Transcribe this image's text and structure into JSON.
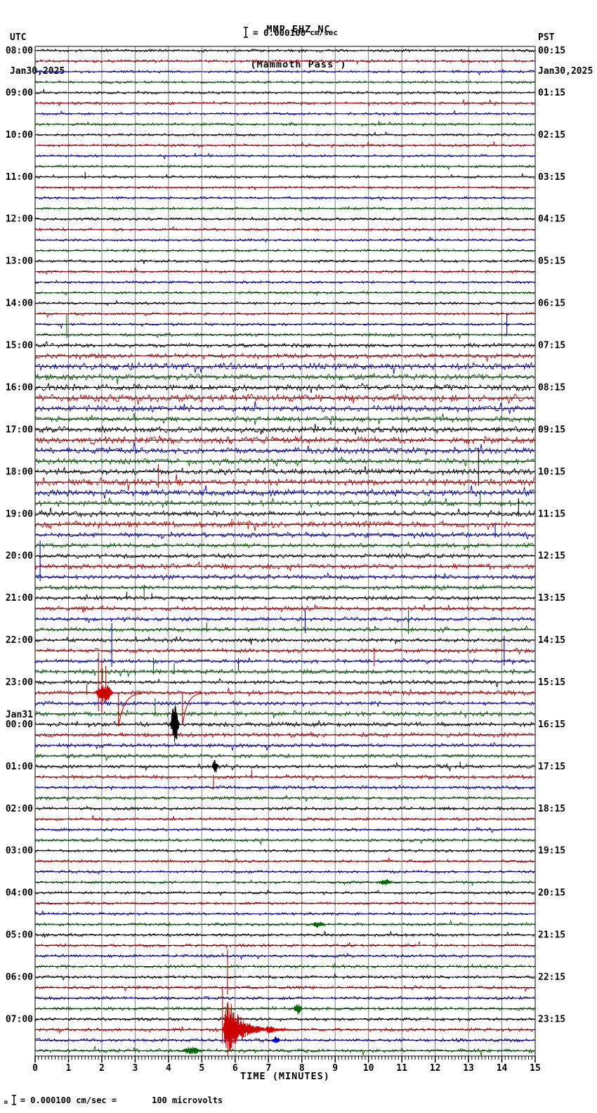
{
  "header": {
    "station_id": "MMP EHZ NC",
    "station_name": "(Mammoth Pass )",
    "scale_label": "= 0.000100",
    "scale_units": "cm/sec",
    "left_tz": "UTC",
    "left_date": "Jan30,2025",
    "right_tz": "PST",
    "right_date": "Jan30,2025"
  },
  "footer": {
    "axis_label": "TIME (MINUTES)",
    "footnote_prefix": "m",
    "footnote_scale": "= 0.000100 cm/sec =",
    "footnote_value": "100 microvolts"
  },
  "chart_data": {
    "type": "seismogram-helicorder",
    "title": "MMP EHZ NC (Mammoth Pass )",
    "xlabel": "TIME (MINUTES)",
    "x_ticks": [
      0,
      1,
      2,
      3,
      4,
      5,
      6,
      7,
      8,
      9,
      10,
      11,
      12,
      13,
      14,
      15
    ],
    "x_minor_per_major": 10,
    "minutes_per_row": 15,
    "rows_per_hour": 4,
    "grid": true,
    "grid_color": "#808080",
    "trace_colors": [
      "#000000",
      "#cc0000",
      "#0000cc",
      "#006400"
    ],
    "midnight_label": "Jan31",
    "hour_rows": [
      {
        "utc": "08:00",
        "pst": "00:15"
      },
      {
        "utc": "09:00",
        "pst": "01:15"
      },
      {
        "utc": "10:00",
        "pst": "02:15"
      },
      {
        "utc": "11:00",
        "pst": "03:15"
      },
      {
        "utc": "12:00",
        "pst": "04:15"
      },
      {
        "utc": "13:00",
        "pst": "05:15"
      },
      {
        "utc": "14:00",
        "pst": "06:15"
      },
      {
        "utc": "15:00",
        "pst": "07:15"
      },
      {
        "utc": "16:00",
        "pst": "08:15"
      },
      {
        "utc": "17:00",
        "pst": "09:15"
      },
      {
        "utc": "18:00",
        "pst": "10:15"
      },
      {
        "utc": "19:00",
        "pst": "11:15"
      },
      {
        "utc": "20:00",
        "pst": "12:15"
      },
      {
        "utc": "21:00",
        "pst": "13:15"
      },
      {
        "utc": "22:00",
        "pst": "14:15"
      },
      {
        "utc": "23:00",
        "pst": "15:15"
      },
      {
        "utc": "00:00",
        "pst": "16:15"
      },
      {
        "utc": "01:00",
        "pst": "17:15"
      },
      {
        "utc": "02:00",
        "pst": "18:15"
      },
      {
        "utc": "03:00",
        "pst": "19:15"
      },
      {
        "utc": "04:00",
        "pst": "20:15"
      },
      {
        "utc": "05:00",
        "pst": "21:15"
      },
      {
        "utc": "06:00",
        "pst": "22:15"
      },
      {
        "utc": "07:00",
        "pst": "23:15"
      }
    ],
    "noise_amplitudes": [
      1.2,
      1.2,
      1.1,
      1.1,
      1.1,
      1.2,
      1.1,
      1.1,
      1.1,
      1.2,
      1.1,
      1.1,
      1.2,
      1.1,
      1.1,
      1.1,
      1.2,
      1.2,
      1.1,
      1.1,
      1.2,
      1.2,
      1.1,
      1.1,
      1.2,
      1.2,
      1.2,
      1.3,
      1.8,
      2.0,
      2.8,
      2.6,
      2.6,
      3.2,
      2.6,
      2.3,
      2.6,
      3.0,
      2.6,
      2.3,
      2.6,
      2.8,
      2.8,
      2.3,
      2.4,
      2.6,
      2.2,
      1.9,
      1.9,
      2.2,
      1.9,
      1.9,
      1.7,
      1.9,
      1.7,
      1.7,
      1.7,
      1.9,
      1.7,
      1.9,
      1.7,
      1.9,
      1.7,
      1.9,
      1.9,
      1.9,
      1.7,
      1.6,
      1.6,
      1.6,
      1.4,
      1.4,
      1.4,
      1.3,
      1.3,
      1.3,
      1.2,
      1.2,
      1.2,
      1.2,
      1.2,
      1.2,
      1.2,
      1.3,
      1.3,
      1.3,
      1.3,
      1.4,
      1.3,
      1.4,
      1.4,
      1.5,
      1.4,
      1.5,
      1.5,
      1.6
    ],
    "events": [
      {
        "row": 12,
        "kind": "spike",
        "t": 1.5,
        "up": 7,
        "down": 3
      },
      {
        "row": 26,
        "kind": "spike",
        "t": 14.15,
        "up": 16,
        "down": 16
      },
      {
        "row": 27,
        "kind": "spike",
        "t": 0.95,
        "up": 30,
        "down": 5
      },
      {
        "row": 40,
        "kind": "spike",
        "t": 13.3,
        "up": 34,
        "down": 20
      },
      {
        "row": 41,
        "kind": "spike",
        "t": 3.7,
        "up": 26,
        "down": 8
      },
      {
        "row": 43,
        "kind": "spike",
        "t": 13.35,
        "up": 18,
        "down": 5
      },
      {
        "row": 44,
        "kind": "spike",
        "t": 14.5,
        "up": 22,
        "down": 4
      },
      {
        "row": 45,
        "kind": "spike",
        "t": 5.9,
        "up": 8,
        "down": 4
      },
      {
        "row": 46,
        "kind": "spike",
        "t": 13.8,
        "up": 16,
        "down": 4
      },
      {
        "row": 50,
        "kind": "spike",
        "t": 0.15,
        "up": 52,
        "down": 6
      },
      {
        "row": 51,
        "kind": "spike",
        "t": 3.27,
        "up": 4,
        "down": 16
      },
      {
        "row": 52,
        "kind": "spike",
        "t": 2.75,
        "up": 9,
        "down": 2
      },
      {
        "row": 52,
        "kind": "spike",
        "t": 3.5,
        "up": 7,
        "down": 2
      },
      {
        "row": 54,
        "kind": "spike",
        "t": 8.1,
        "up": 12,
        "down": 20
      },
      {
        "row": 55,
        "kind": "spike",
        "t": 5.15,
        "up": 10,
        "down": 3
      },
      {
        "row": 55,
        "kind": "spike",
        "t": 11.2,
        "up": 28,
        "down": 6
      },
      {
        "row": 57,
        "kind": "spike",
        "t": 10.17,
        "up": 4,
        "down": 22
      },
      {
        "row": 58,
        "kind": "spike",
        "t": 2.3,
        "up": 54,
        "down": 8
      },
      {
        "row": 58,
        "kind": "spike",
        "t": 6.1,
        "up": 4,
        "down": 13
      },
      {
        "row": 58,
        "kind": "spike",
        "t": 14.07,
        "up": 36,
        "down": 6
      },
      {
        "row": 59,
        "kind": "spike",
        "t": 2.02,
        "up": 5,
        "down": 12
      },
      {
        "row": 59,
        "kind": "spike",
        "t": 3.55,
        "up": 20,
        "down": 4
      },
      {
        "row": 59,
        "kind": "spike",
        "t": 4.17,
        "up": 12,
        "down": 4
      },
      {
        "row": 61,
        "kind": "spike",
        "t": 1.55,
        "up": 12,
        "down": 3
      },
      {
        "row": 61,
        "kind": "spike",
        "t": 1.9,
        "up": 58,
        "down": 26
      },
      {
        "row": 61,
        "kind": "spike",
        "t": 2.0,
        "up": 48,
        "down": 30
      },
      {
        "row": 61,
        "kind": "spike",
        "t": 2.12,
        "up": 38,
        "down": 12
      },
      {
        "row": 61,
        "kind": "burst",
        "t0": 1.8,
        "t1": 2.35,
        "up": 14,
        "dn": 14,
        "shape": "sym"
      },
      {
        "row": 61,
        "kind": "dip",
        "t": 2.5,
        "depth": 48,
        "recover": 0.7
      },
      {
        "row": 61,
        "kind": "dip",
        "t": 4.42,
        "depth": 46,
        "recover": 0.6
      },
      {
        "row": 63,
        "kind": "spike",
        "t": 3.6,
        "up": 22,
        "down": 4
      },
      {
        "row": 63,
        "kind": "spike",
        "t": 4.2,
        "up": 14,
        "down": 4
      },
      {
        "row": 64,
        "kind": "burst",
        "t0": 4.05,
        "t1": 4.33,
        "up": 30,
        "dn": 28,
        "shape": "sym"
      },
      {
        "row": 68,
        "kind": "burst",
        "t0": 5.3,
        "t1": 5.5,
        "up": 10,
        "dn": 10,
        "shape": "sym"
      },
      {
        "row": 68,
        "kind": "spike",
        "t": 12.75,
        "up": 7,
        "down": 2
      },
      {
        "row": 69,
        "kind": "spike",
        "t": 5.35,
        "up": 3,
        "down": 18
      },
      {
        "row": 69,
        "kind": "spike",
        "t": 6.5,
        "up": 10,
        "down": 2
      },
      {
        "row": 79,
        "kind": "burst",
        "t0": 10.3,
        "t1": 10.7,
        "up": 5,
        "dn": 5,
        "shape": "sym"
      },
      {
        "row": 83,
        "kind": "burst",
        "t0": 8.3,
        "t1": 8.7,
        "up": 5,
        "dn": 5,
        "shape": "sym"
      },
      {
        "row": 89,
        "kind": "spike",
        "t": 5.77,
        "up": 54,
        "down": 10
      },
      {
        "row": 91,
        "kind": "burst",
        "t0": 7.75,
        "t1": 8.0,
        "up": 9,
        "dn": 9,
        "shape": "sym"
      },
      {
        "row": 93,
        "kind": "spike",
        "t": 5.62,
        "up": 58,
        "down": 20
      },
      {
        "row": 93,
        "kind": "burst",
        "t0": 5.62,
        "t1": 6.9,
        "up": 50,
        "dn": 40,
        "shape": "decay"
      },
      {
        "row": 93,
        "kind": "burst",
        "t0": 6.9,
        "t1": 7.6,
        "up": 8,
        "dn": 8,
        "shape": "decay"
      },
      {
        "row": 94,
        "kind": "burst",
        "t0": 7.1,
        "t1": 7.35,
        "up": 6,
        "dn": 6,
        "shape": "sym"
      },
      {
        "row": 95,
        "kind": "burst",
        "t0": 4.4,
        "t1": 5.0,
        "up": 6,
        "dn": 6,
        "shape": "sym"
      }
    ]
  }
}
